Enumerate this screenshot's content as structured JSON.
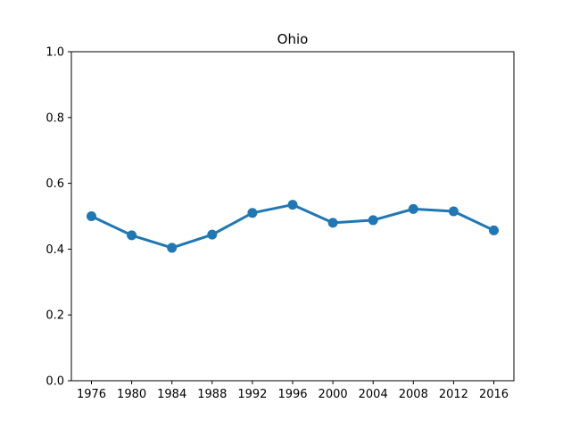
{
  "chart_data": {
    "type": "line",
    "title": "Ohio",
    "xlabel": "",
    "ylabel": "",
    "categories": [
      "1976",
      "1980",
      "1984",
      "1988",
      "1992",
      "1996",
      "2000",
      "2004",
      "2008",
      "2012",
      "2016"
    ],
    "series": [
      {
        "values": [
          0.5,
          0.442,
          0.404,
          0.444,
          0.51,
          0.535,
          0.48,
          0.488,
          0.522,
          0.515,
          0.457
        ],
        "color": "#1f77b4"
      }
    ],
    "ylim": [
      0,
      1.0
    ],
    "yticks": [
      "0.0",
      "0.2",
      "0.4",
      "0.6",
      "0.8",
      "1.0"
    ],
    "grid": false,
    "legend": "none"
  }
}
